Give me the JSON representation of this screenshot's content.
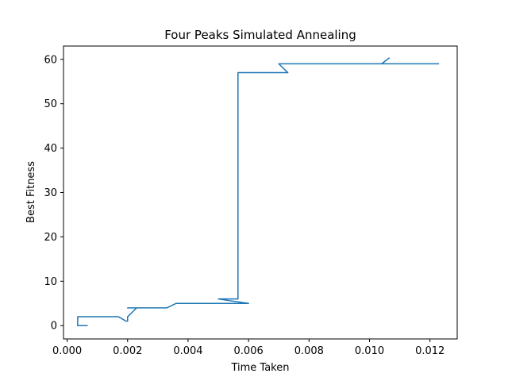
{
  "chart_data": {
    "type": "line",
    "title": "Four Peaks Simulated Annealing",
    "xlabel": "Time Taken",
    "ylabel": "Best Fitness",
    "xlim": [
      -0.00012,
      0.0129
    ],
    "ylim": [
      -3,
      63
    ],
    "xticks": [
      0.0,
      0.002,
      0.004,
      0.006,
      0.008,
      0.01,
      0.012
    ],
    "xtick_labels": [
      "0.000",
      "0.002",
      "0.004",
      "0.006",
      "0.008",
      "0.010",
      "0.012"
    ],
    "yticks": [
      0,
      10,
      20,
      30,
      40,
      50,
      60
    ],
    "ytick_labels": [
      "0",
      "10",
      "20",
      "30",
      "40",
      "50",
      "60"
    ],
    "grid": false,
    "color": "#1f77b4",
    "series": [
      {
        "x": [
          0.00068,
          0.00035,
          0.00035,
          0.0006,
          0.00035,
          0.00035,
          0.001,
          0.0017,
          0.00195,
          0.002,
          0.002,
          0.0023,
          0.003,
          0.002,
          0.003,
          0.0033,
          0.0036,
          0.004,
          0.0036,
          0.006,
          0.005,
          0.0056,
          0.00565,
          0.00565,
          0.0065,
          0.007,
          0.0073,
          0.007,
          0.007,
          0.0096,
          0.0104,
          0.01065,
          0.0104,
          0.0123
        ],
        "y": [
          0,
          0,
          0,
          0,
          0,
          2,
          2,
          2,
          1,
          1,
          2,
          4,
          4,
          4,
          4,
          4,
          5,
          5,
          5,
          5,
          6,
          6,
          6,
          57,
          57,
          57,
          57,
          59,
          59,
          59,
          59,
          60.3,
          59,
          59
        ]
      }
    ]
  }
}
